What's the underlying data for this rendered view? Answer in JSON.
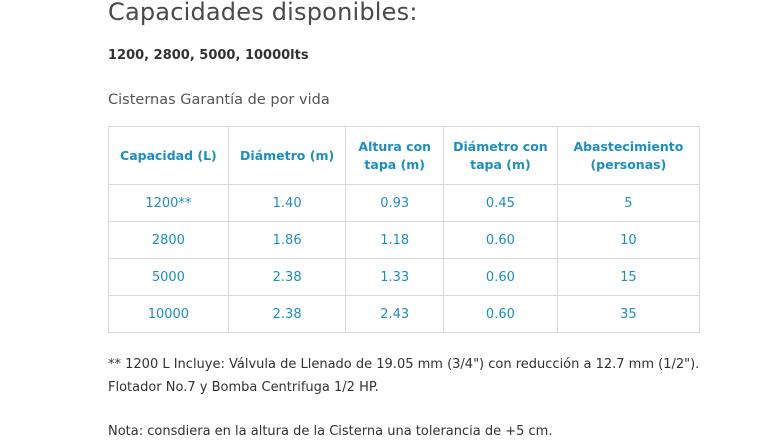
{
  "heading": "Capacidades disponibles:",
  "capacities": "1200, 2800, 5000, 10000lts",
  "subtitle": "Cisternas Garantía de por vida",
  "table": {
    "headers": [
      "Capacidad (L)",
      "Diámetro (m)",
      "Altura con tapa (m)",
      "Diámetro con tapa (m)",
      "Abastecimiento (personas)"
    ],
    "rows": [
      [
        "1200**",
        "1.40",
        "0.93",
        "0.45",
        "5"
      ],
      [
        "2800",
        "1.86",
        "1.18",
        "0.60",
        "10"
      ],
      [
        "5000",
        "2.38",
        "1.33",
        "0.60",
        "15"
      ],
      [
        "10000",
        "2.38",
        "2.43",
        "0.60",
        "35"
      ]
    ]
  },
  "footnote": "** 1200 L Incluye: Válvula de Llenado de 19.05 mm (3/4\") con reducción a 12.7 mm (1/2\"). Flotador No.7 y Bomba Centrifuga 1/2 HP.",
  "note": "Nota: consdiera en la altura de la Cisterna una tolerancia de +5 cm."
}
